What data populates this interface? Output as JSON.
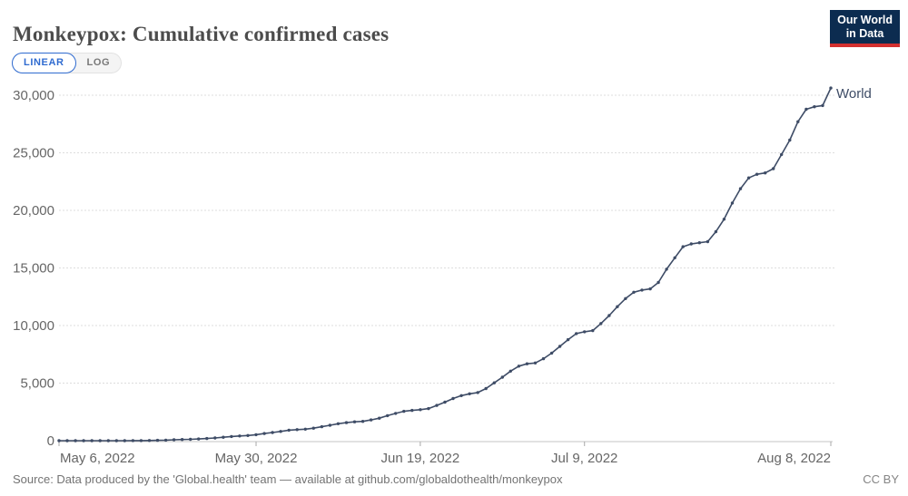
{
  "header": {
    "title": "Monkeypox: Cumulative confirmed cases",
    "logo": {
      "line1": "Our World",
      "line2": "in Data"
    }
  },
  "toolbar": {
    "linear_label": "LINEAR",
    "log_label": "LOG",
    "active": "LINEAR"
  },
  "footer": {
    "source": "Source: Data produced by the 'Global.health' team — available at github.com/globaldothealth/monkeypox",
    "license": "CC BY"
  },
  "colors": {
    "accent_blue": "#2f6bd0",
    "line": "#3e4c66",
    "grid": "#dddddd",
    "axis": "#c4c4c4",
    "tick_label": "#666666",
    "logo_bg": "#0c2c50",
    "logo_red": "#d3302f"
  },
  "chart_data": {
    "type": "line",
    "title": "Monkeypox: Cumulative confirmed cases",
    "series_name": "World",
    "x_start_date": "May 6, 2022",
    "x_end_date": "Aug 8, 2022",
    "x_tick_labels": [
      "May 6, 2022",
      "May 30, 2022",
      "Jun 19, 2022",
      "Jul 9, 2022",
      "Aug 8, 2022"
    ],
    "x_tick_days": [
      0,
      24,
      44,
      64,
      94
    ],
    "ylim": [
      0,
      30000
    ],
    "yticks": [
      0,
      5000,
      10000,
      15000,
      20000,
      25000,
      30000
    ],
    "ytick_labels": [
      "0",
      "5,000",
      "10,000",
      "15,000",
      "20,000",
      "25,000",
      "30,000"
    ],
    "grid": true,
    "legend_position": "end-of-line",
    "line_color": "#3e4c66",
    "values_note": "daily cumulative confirmed cases, one value per day from May 6 2022 to Aug 8 2022",
    "values": [
      1,
      1,
      1,
      2,
      2,
      2,
      2,
      3,
      3,
      4,
      8,
      15,
      30,
      50,
      80,
      100,
      120,
      150,
      190,
      240,
      300,
      360,
      410,
      450,
      520,
      620,
      710,
      800,
      910,
      960,
      1000,
      1090,
      1210,
      1340,
      1470,
      1570,
      1640,
      1680,
      1800,
      1950,
      2170,
      2370,
      2550,
      2630,
      2690,
      2790,
      3060,
      3350,
      3660,
      3910,
      4070,
      4180,
      4530,
      5020,
      5510,
      6040,
      6470,
      6680,
      6750,
      7120,
      7610,
      8190,
      8770,
      9300,
      9460,
      9560,
      10170,
      10870,
      11640,
      12340,
      12890,
      13080,
      13180,
      13740,
      14890,
      15880,
      16840,
      17090,
      17190,
      17280,
      18150,
      19230,
      20640,
      21880,
      22820,
      23130,
      23250,
      23620,
      24850,
      26100,
      27700,
      28780,
      29000,
      29100,
      30620
    ]
  }
}
